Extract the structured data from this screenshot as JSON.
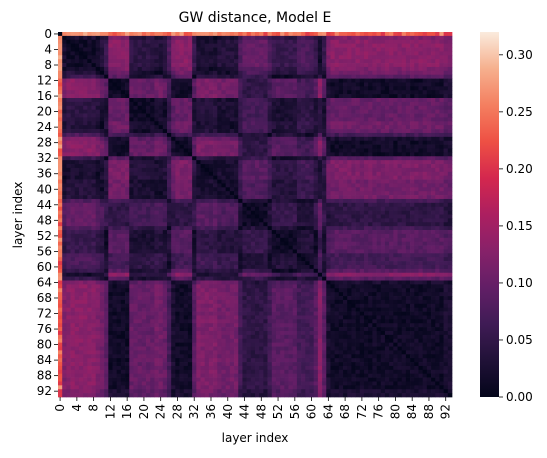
{
  "chart_data": {
    "type": "heatmap",
    "title": "GW distance, Model E",
    "xlabel": "layer index",
    "ylabel": "layer index",
    "n": 94,
    "x_ticks": [
      0,
      4,
      8,
      12,
      16,
      20,
      24,
      28,
      32,
      36,
      40,
      44,
      48,
      52,
      56,
      60,
      64,
      68,
      72,
      76,
      80,
      84,
      88,
      92
    ],
    "y_ticks": [
      0,
      4,
      8,
      12,
      16,
      20,
      24,
      28,
      32,
      36,
      40,
      44,
      48,
      52,
      56,
      60,
      64,
      68,
      72,
      76,
      80,
      84,
      88,
      92
    ],
    "colorbar": {
      "vmin": 0.0,
      "vmax": 0.32,
      "ticks": [
        0.0,
        0.05,
        0.1,
        0.15,
        0.2,
        0.25,
        0.3
      ],
      "tick_labels": [
        "0.00",
        "0.05",
        "0.10",
        "0.15",
        "0.20",
        "0.25",
        "0.30"
      ],
      "colormap": "rocket"
    },
    "layer_profile": [
      0.27,
      0.03,
      0.02,
      0.02,
      0.02,
      0.02,
      0.02,
      0.02,
      0.02,
      0.03,
      0.04,
      0.06,
      0.13,
      0.13,
      0.13,
      0.13,
      0.13,
      0.05,
      0.05,
      0.05,
      0.05,
      0.05,
      0.05,
      0.04,
      0.04,
      0.05,
      0.08,
      0.12,
      0.13,
      0.13,
      0.13,
      0.13,
      0.06,
      0.03,
      0.03,
      0.03,
      0.03,
      0.03,
      0.04,
      0.04,
      0.04,
      0.04,
      0.04,
      0.08,
      0.1,
      0.1,
      0.1,
      0.1,
      0.1,
      0.1,
      0.08,
      0.06,
      0.06,
      0.06,
      0.06,
      0.06,
      0.06,
      0.08,
      0.08,
      0.08,
      0.08,
      0.06,
      0.02,
      0.06,
      0.12,
      0.13,
      0.13,
      0.13,
      0.13,
      0.13,
      0.13,
      0.13,
      0.13,
      0.13,
      0.13,
      0.13,
      0.13,
      0.13,
      0.13,
      0.13,
      0.13,
      0.13,
      0.13,
      0.13,
      0.13,
      0.13,
      0.13,
      0.13,
      0.13,
      0.13,
      0.13,
      0.13,
      0.12,
      0.12
    ]
  }
}
